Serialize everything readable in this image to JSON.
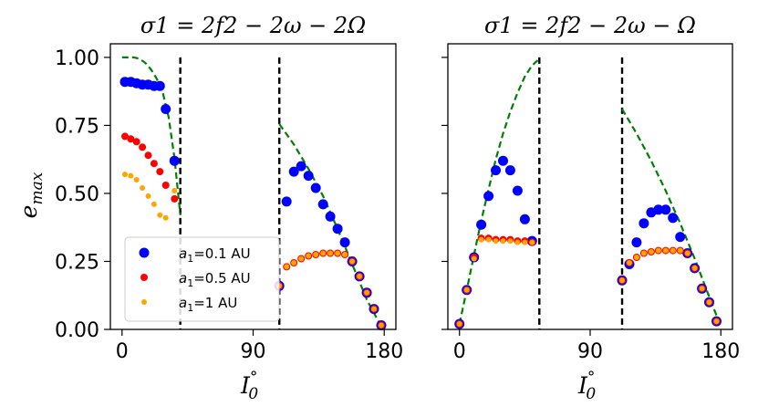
{
  "figure": {
    "ylabel": "e",
    "ylabel_sub": "max",
    "xlabel": "I",
    "xlabel_sup": "°",
    "xlabel_sub": "0"
  },
  "legend": {
    "placement": "lower-left",
    "entries": [
      {
        "prefix": "a",
        "sub": "1",
        "suffix": "=0.1 AU",
        "color": "#0000ff"
      },
      {
        "prefix": "a",
        "sub": "1",
        "suffix": "=0.5 AU",
        "color": "#ff0000"
      },
      {
        "prefix": "a",
        "sub": "1",
        "suffix": "=1 AU",
        "color": "#ffa500"
      }
    ]
  },
  "chart_data": [
    {
      "type": "scatter",
      "title": "σ1 = 2f2 − 2ω − 2Ω",
      "xlim": [
        -8,
        188
      ],
      "ylim": [
        0,
        1.05
      ],
      "xticks": [
        "0",
        "90",
        "180"
      ],
      "yticks": [
        "0.00",
        "0.25",
        "0.50",
        "0.75",
        "1.00"
      ],
      "vlines": [
        40,
        108
      ],
      "series": [
        {
          "name": "a1=0.1 AU",
          "color": "#0000ff",
          "x": [
            2,
            6,
            10,
            14,
            18,
            22,
            26,
            30,
            36,
            108,
            113,
            118,
            123,
            128,
            133,
            138,
            143,
            148,
            153,
            158,
            163,
            168,
            173,
            178
          ],
          "y": [
            0.91,
            0.91,
            0.905,
            0.9,
            0.9,
            0.895,
            0.895,
            0.81,
            0.62,
            0.16,
            0.47,
            0.58,
            0.6,
            0.565,
            0.52,
            0.46,
            0.415,
            0.37,
            0.32,
            0.25,
            0.195,
            0.135,
            0.075,
            0.015
          ]
        },
        {
          "name": "a1=0.5 AU",
          "color": "#ff0000",
          "x": [
            2,
            6,
            10,
            14,
            18,
            22,
            26,
            30,
            36,
            108,
            113,
            118,
            123,
            128,
            133,
            138,
            143,
            148,
            153,
            158,
            163,
            168,
            173,
            178
          ],
          "y": [
            0.71,
            0.7,
            0.69,
            0.67,
            0.64,
            0.61,
            0.58,
            0.53,
            0.48,
            0.16,
            0.23,
            0.245,
            0.26,
            0.27,
            0.275,
            0.28,
            0.28,
            0.28,
            0.275,
            0.25,
            0.195,
            0.135,
            0.075,
            0.015
          ]
        },
        {
          "name": "a1=1 AU",
          "color": "#ffa500",
          "x": [
            2,
            6,
            10,
            14,
            18,
            22,
            26,
            30,
            36,
            108,
            113,
            118,
            123,
            128,
            133,
            138,
            143,
            148,
            153,
            158,
            163,
            168,
            173,
            178
          ],
          "y": [
            0.57,
            0.565,
            0.55,
            0.52,
            0.49,
            0.46,
            0.42,
            0.41,
            0.51,
            0.16,
            0.23,
            0.245,
            0.26,
            0.27,
            0.275,
            0.28,
            0.28,
            0.28,
            0.275,
            0.25,
            0.195,
            0.135,
            0.075,
            0.015
          ]
        }
      ],
      "curves": [
        {
          "color": "#008000",
          "style": "dashed",
          "x": [
            0,
            4,
            8,
            12,
            16,
            20,
            24,
            28,
            32,
            36,
            40
          ],
          "y": [
            1.0,
            1.0,
            1.0,
            0.995,
            0.98,
            0.955,
            0.92,
            0.87,
            0.78,
            0.63,
            0.42
          ]
        },
        {
          "color": "#008000",
          "style": "dashed",
          "x": [
            108,
            118,
            128,
            138,
            148,
            158,
            168,
            178,
            180
          ],
          "y": [
            0.755,
            0.68,
            0.59,
            0.49,
            0.37,
            0.24,
            0.11,
            0.01,
            0.0
          ]
        }
      ]
    },
    {
      "type": "scatter",
      "title": "σ1 = 2f2 − 2ω − Ω",
      "xlim": [
        -8,
        188
      ],
      "ylim": [
        0,
        1.05
      ],
      "xticks": [
        "0",
        "90",
        "180"
      ],
      "yticks": [
        "0.00",
        "0.25",
        "0.50",
        "0.75",
        "1.00"
      ],
      "vlines": [
        55,
        112
      ],
      "series": [
        {
          "name": "a1=0.1 AU",
          "color": "#0000ff",
          "x": [
            0,
            5,
            10,
            15,
            20,
            25,
            30,
            35,
            40,
            45,
            50,
            112,
            117,
            122,
            127,
            132,
            137,
            142,
            147,
            152,
            157,
            162,
            167,
            172,
            177
          ],
          "y": [
            0.02,
            0.145,
            0.265,
            0.385,
            0.49,
            0.585,
            0.62,
            0.585,
            0.51,
            0.405,
            0.325,
            0.18,
            0.24,
            0.32,
            0.39,
            0.43,
            0.44,
            0.44,
            0.41,
            0.34,
            0.28,
            0.225,
            0.15,
            0.1,
            0.03
          ]
        },
        {
          "name": "a1=0.5 AU",
          "color": "#ff0000",
          "x": [
            0,
            5,
            10,
            15,
            20,
            25,
            30,
            35,
            40,
            45,
            50,
            112,
            117,
            122,
            127,
            132,
            137,
            142,
            147,
            152,
            157,
            162,
            167,
            172,
            177
          ],
          "y": [
            0.02,
            0.145,
            0.265,
            0.335,
            0.335,
            0.33,
            0.33,
            0.33,
            0.325,
            0.325,
            0.32,
            0.18,
            0.245,
            0.265,
            0.28,
            0.285,
            0.29,
            0.29,
            0.29,
            0.29,
            0.28,
            0.225,
            0.15,
            0.1,
            0.03
          ]
        },
        {
          "name": "a1=1 AU",
          "color": "#ffa500",
          "x": [
            0,
            5,
            10,
            15,
            20,
            25,
            30,
            35,
            40,
            45,
            50,
            112,
            117,
            122,
            127,
            132,
            137,
            142,
            147,
            152,
            157,
            162,
            167,
            172,
            177
          ],
          "y": [
            0.02,
            0.145,
            0.26,
            0.33,
            0.33,
            0.325,
            0.325,
            0.325,
            0.32,
            0.32,
            0.32,
            0.18,
            0.245,
            0.265,
            0.28,
            0.285,
            0.29,
            0.29,
            0.29,
            0.29,
            0.28,
            0.225,
            0.15,
            0.1,
            0.03
          ]
        }
      ],
      "curves": [
        {
          "color": "#008000",
          "style": "dashed",
          "x": [
            0,
            5,
            10,
            15,
            20,
            25,
            30,
            35,
            40,
            45,
            50,
            55
          ],
          "y": [
            0.02,
            0.145,
            0.275,
            0.4,
            0.515,
            0.625,
            0.72,
            0.8,
            0.87,
            0.93,
            0.97,
            0.995
          ]
        },
        {
          "color": "#008000",
          "style": "dashed",
          "x": [
            112,
            122,
            132,
            142,
            152,
            162,
            172,
            180
          ],
          "y": [
            0.81,
            0.72,
            0.62,
            0.51,
            0.39,
            0.26,
            0.12,
            0.01
          ]
        }
      ]
    }
  ]
}
